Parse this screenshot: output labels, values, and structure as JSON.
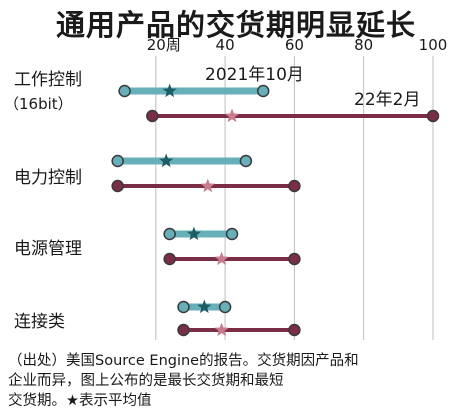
{
  "chart_data": {
    "type": "dumbbell",
    "title": "通用产品的交货期明显延长",
    "x_axis": {
      "ticks": [
        {
          "value": 20,
          "label": "20周"
        },
        {
          "value": 40,
          "label": "40"
        },
        {
          "value": 60,
          "label": "60"
        },
        {
          "value": 80,
          "label": "80"
        },
        {
          "value": 100,
          "label": "100"
        }
      ],
      "range": [
        0,
        100
      ],
      "grid": true
    },
    "series": [
      {
        "name": "2021年10月",
        "color": "#67b0ba"
      },
      {
        "name": "22年2月",
        "color": "#7a2d45"
      }
    ],
    "categories": [
      {
        "label": "工作控制",
        "sublabel": "（16bit）",
        "ranges": [
          {
            "min": 11,
            "avg": 24,
            "max": 51
          },
          {
            "min": 19,
            "avg": 42,
            "max": 100
          }
        ]
      },
      {
        "label": "电力控制",
        "sublabel": "",
        "ranges": [
          {
            "min": 9,
            "avg": 23,
            "max": 46
          },
          {
            "min": 9,
            "avg": 35,
            "max": 60
          }
        ]
      },
      {
        "label": "电源管理",
        "sublabel": "",
        "ranges": [
          {
            "min": 24,
            "avg": 31,
            "max": 42
          },
          {
            "min": 24,
            "avg": 39,
            "max": 60
          }
        ]
      },
      {
        "label": "连接类",
        "sublabel": "",
        "ranges": [
          {
            "min": 28,
            "avg": 34,
            "max": 40
          },
          {
            "min": 28,
            "avg": 39,
            "max": 60
          }
        ]
      }
    ]
  },
  "note": {
    "line1": "（出处）美国Source Engine的报告。交货期因产品和",
    "line2": "企业而异，图上公布的是最长交货期和最短",
    "line3": "交货期。★表示平均值"
  }
}
